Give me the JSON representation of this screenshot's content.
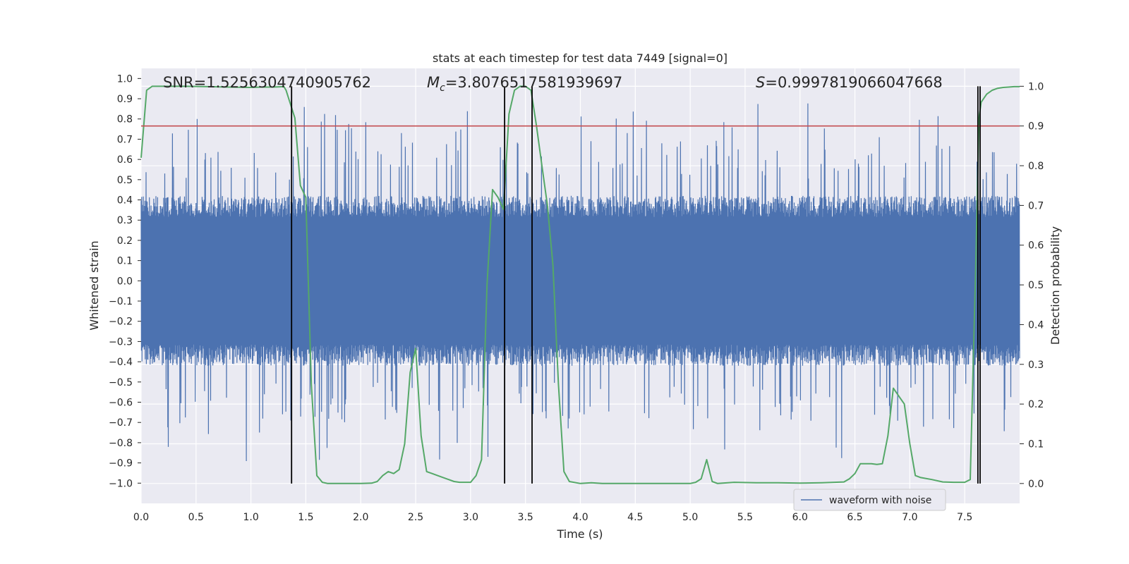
{
  "chart_data": {
    "type": "line",
    "title": "stats at each timestep for test data 7449 [signal=0]",
    "xlabel": "Time (s)",
    "ylabel_left": "Whitened strain",
    "ylabel_right": "Detection probability",
    "xlim": [
      0.0,
      8.0
    ],
    "ylim_left": [
      -1.1,
      1.05
    ],
    "ylim_right": [
      -0.05,
      1.045
    ],
    "x_ticks": [
      "0.0",
      "0.5",
      "1.0",
      "1.5",
      "2.0",
      "2.5",
      "3.0",
      "3.5",
      "4.0",
      "4.5",
      "5.0",
      "5.5",
      "6.0",
      "6.5",
      "7.0",
      "7.5"
    ],
    "y_left_ticks": [
      "1.0",
      "0.9",
      "0.8",
      "0.7",
      "0.6",
      "0.5",
      "0.4",
      "0.3",
      "0.2",
      "0.1",
      "0.0",
      "−0.1",
      "−0.2",
      "−0.3",
      "−0.4",
      "−0.5",
      "−0.6",
      "−0.7",
      "−0.8",
      "−0.9",
      "−1.0"
    ],
    "y_right_ticks": [
      "1.0",
      "0.9",
      "0.8",
      "0.7",
      "0.6",
      "0.5",
      "0.4",
      "0.3",
      "0.2",
      "0.1",
      "0.0"
    ],
    "annotations": {
      "snr": "SNR=1.5256304740905762",
      "mc_symbol": "M",
      "mc_sub": "c",
      "mc_value": "=3.8076517581939697",
      "s_symbol": "S",
      "s_value": "=0.9997819066047668"
    },
    "threshold": {
      "value": 0.9,
      "color": "#c44e52"
    },
    "vertical_markers": [
      1.37,
      3.31,
      3.56,
      7.62,
      7.64
    ],
    "legend": {
      "label": "waveform with noise",
      "location": "lower-right"
    },
    "waveform": {
      "color": "#4c72b0",
      "noise_band": [
        -0.42,
        0.42
      ],
      "peak_range": [
        -1.0,
        0.92
      ],
      "samples": 3200
    },
    "series": [
      {
        "name": "detection probability",
        "color": "#55a868",
        "x": [
          0.0,
          0.05,
          0.1,
          0.2,
          0.4,
          0.6,
          0.8,
          1.0,
          1.1,
          1.2,
          1.3,
          1.32,
          1.4,
          1.45,
          1.5,
          1.55,
          1.6,
          1.65,
          1.7,
          1.8,
          1.9,
          2.0,
          2.1,
          2.15,
          2.2,
          2.25,
          2.3,
          2.35,
          2.4,
          2.45,
          2.5,
          2.55,
          2.6,
          2.65,
          2.7,
          2.8,
          2.85,
          2.9,
          3.0,
          3.05,
          3.1,
          3.15,
          3.2,
          3.25,
          3.3,
          3.35,
          3.4,
          3.45,
          3.5,
          3.55,
          3.6,
          3.65,
          3.7,
          3.75,
          3.8,
          3.85,
          3.9,
          4.0,
          4.1,
          4.2,
          4.4,
          4.6,
          4.8,
          5.0,
          5.05,
          5.1,
          5.15,
          5.2,
          5.25,
          5.4,
          5.6,
          5.8,
          6.0,
          6.2,
          6.4,
          6.45,
          6.5,
          6.55,
          6.6,
          6.65,
          6.7,
          6.75,
          6.8,
          6.85,
          6.9,
          6.95,
          7.0,
          7.05,
          7.1,
          7.2,
          7.3,
          7.4,
          7.5,
          7.55,
          7.6,
          7.63,
          7.65,
          7.7,
          7.75,
          7.8,
          7.85,
          7.9,
          7.95,
          8.0
        ],
        "y": [
          0.82,
          0.99,
          1.0,
          1.0,
          1.0,
          0.999,
          0.998,
          0.997,
          0.998,
          0.998,
          0.999,
          0.99,
          0.92,
          0.75,
          0.72,
          0.25,
          0.02,
          0.003,
          0.0,
          0.0,
          0.0,
          0.0,
          0.001,
          0.005,
          0.02,
          0.03,
          0.025,
          0.035,
          0.1,
          0.28,
          0.34,
          0.12,
          0.03,
          0.025,
          0.02,
          0.01,
          0.005,
          0.003,
          0.003,
          0.02,
          0.06,
          0.5,
          0.74,
          0.72,
          0.69,
          0.93,
          0.99,
          1.0,
          1.0,
          0.99,
          0.9,
          0.8,
          0.7,
          0.55,
          0.25,
          0.03,
          0.005,
          0.0,
          0.002,
          0.0,
          0.0,
          0.0,
          0.0,
          0.0,
          0.003,
          0.012,
          0.06,
          0.005,
          0.0,
          0.003,
          0.002,
          0.002,
          0.001,
          0.002,
          0.004,
          0.012,
          0.025,
          0.05,
          0.05,
          0.05,
          0.048,
          0.05,
          0.12,
          0.24,
          0.22,
          0.2,
          0.1,
          0.02,
          0.015,
          0.01,
          0.004,
          0.003,
          0.003,
          0.01,
          0.55,
          0.92,
          0.96,
          0.98,
          0.99,
          0.995,
          0.997,
          0.998,
          0.999,
          0.999
        ]
      }
    ]
  }
}
